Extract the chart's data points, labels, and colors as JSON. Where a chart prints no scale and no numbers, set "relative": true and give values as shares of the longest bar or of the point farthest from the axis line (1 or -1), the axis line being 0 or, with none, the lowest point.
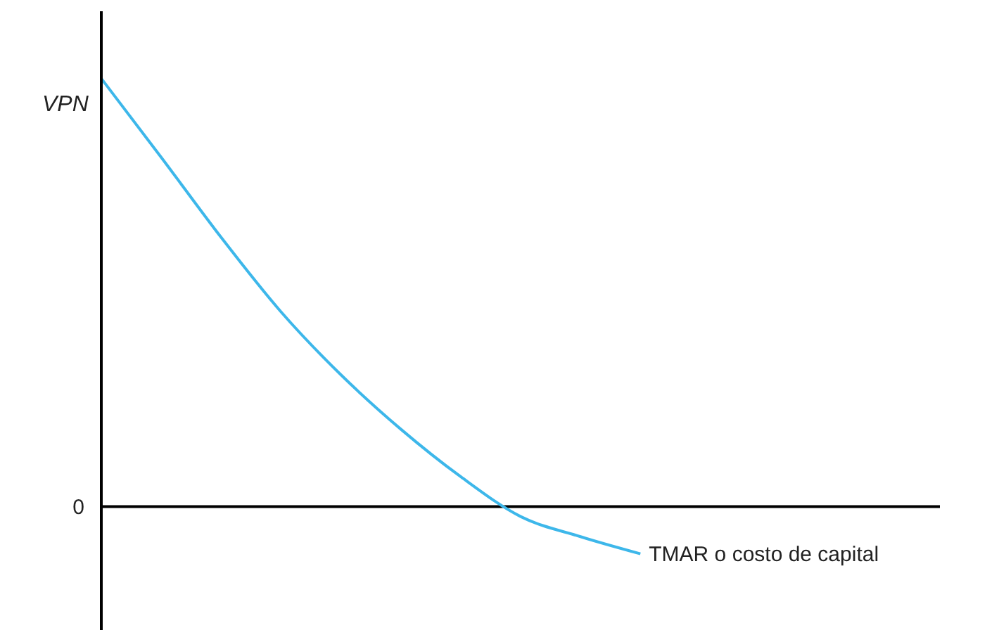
{
  "chart_data": {
    "type": "line",
    "relative": true,
    "ylabel": "VPN",
    "xlabel": "TMAR o costo de capital",
    "annotations": [
      "0"
    ],
    "categories": [
      null,
      null,
      null,
      null,
      null,
      null,
      null,
      null,
      null,
      null,
      null,
      null,
      null,
      null,
      null
    ],
    "series": [
      {
        "color": "#3db7ea",
        "values": [
          1,
          0.816,
          0.629,
          0.455,
          0.308,
          0.181,
          0.07,
          -0.023,
          -0.07,
          -0.11,
          null,
          null,
          null,
          null,
          null
        ]
      }
    ],
    "marker": "none",
    "line_style": "solid",
    "grid": false,
    "legend": false
  }
}
